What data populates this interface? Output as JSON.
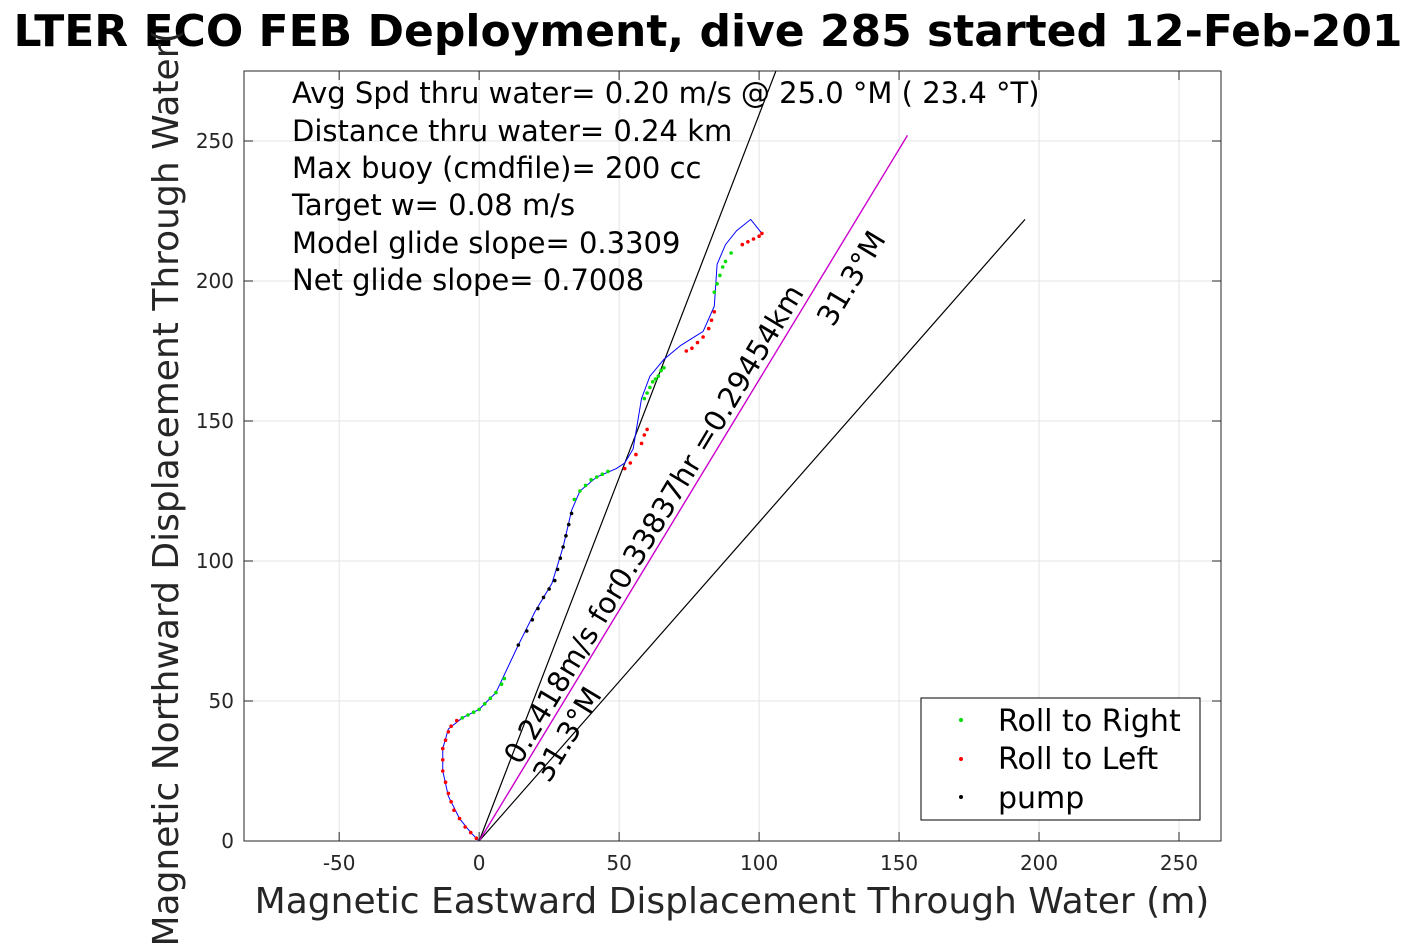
{
  "chart_data": {
    "type": "scatter",
    "title": "LTER ECO FEB Deployment, dive 285 started 12-Feb-201",
    "xlabel": "Magnetic Eastward Displacement Through Water (m)",
    "ylabel": "Magnetic Northward Displacement Through Water(",
    "xlim": [
      -84,
      265
    ],
    "ylim": [
      0,
      275
    ],
    "xticks": [
      -50,
      0,
      50,
      100,
      150,
      200,
      250
    ],
    "xtick_labels": [
      "-50",
      "0",
      "50",
      "100",
      "150",
      "200",
      "250"
    ],
    "yticks": [
      0,
      50,
      100,
      150,
      200,
      250
    ],
    "ytick_labels": [
      "0",
      "50",
      "100",
      "150",
      "200",
      "250"
    ],
    "grid": true,
    "legend_position": "bottom-right",
    "colors": {
      "track": "#0000ff",
      "roll_right": "#00dd00",
      "roll_left": "#ff0000",
      "pump": "#000000",
      "net_line": "#cc00cc",
      "ref_lines": "#000000"
    },
    "annotations": [
      "Avg Spd thru water=  0.20 m/s @  25.0 °M ( 23.4 °T)",
      "Distance thru water=  0.24 km",
      "Max buoy (cmdfile)= 200 cc",
      "Target w= 0.08 m/s",
      "Model glide slope= 0.3309",
      "Net glide slope= 0.7008"
    ],
    "rotated_labels": {
      "net": "0.2418m/s for0.33837hr =0.29454km",
      "net_heading": "31.3°M",
      "lower_heading": "31.3°M"
    },
    "series": [
      {
        "name": "track",
        "x": [
          0,
          -3,
          -7,
          -11,
          -13,
          -13,
          -11,
          -6,
          0,
          6,
          14,
          20,
          26,
          30,
          33,
          36,
          42,
          49,
          52,
          55,
          58,
          61,
          66,
          72,
          80,
          84,
          85,
          88,
          92,
          97,
          101
        ],
        "y": [
          0,
          3,
          8,
          16,
          25,
          33,
          40,
          44,
          47,
          53,
          70,
          82,
          92,
          105,
          118,
          125,
          130,
          133,
          135,
          140,
          158,
          166,
          172,
          177,
          182,
          191,
          206,
          213,
          218,
          222,
          217
        ]
      },
      {
        "name": "Roll to Right",
        "x": [
          -6,
          -4,
          -2,
          0,
          2,
          4,
          6,
          8,
          9,
          34,
          36,
          38,
          40,
          42,
          44,
          46,
          59,
          60,
          61,
          62,
          63,
          64,
          65,
          66,
          84,
          85,
          86,
          87,
          88,
          90
        ],
        "y": [
          44,
          45,
          46,
          47,
          49,
          51,
          53,
          56,
          58,
          122,
          125,
          127,
          129,
          130,
          131,
          132,
          158,
          160,
          162,
          164,
          165,
          166,
          168,
          169,
          196,
          199,
          202,
          205,
          207,
          210
        ]
      },
      {
        "name": "Roll to Left",
        "x": [
          -1,
          -3,
          -5,
          -7,
          -9,
          -10,
          -11,
          -12,
          -13,
          -13,
          -13,
          -12,
          -11,
          -10,
          -8,
          52,
          54,
          56,
          58,
          59,
          60,
          74,
          76,
          78,
          80,
          82,
          83,
          84,
          94,
          96,
          98,
          100,
          101
        ],
        "y": [
          1,
          3,
          5,
          8,
          11,
          14,
          17,
          21,
          25,
          29,
          33,
          36,
          39,
          41,
          43,
          133,
          135,
          138,
          142,
          145,
          147,
          175,
          176,
          178,
          180,
          183,
          186,
          189,
          213,
          214,
          215,
          216,
          217
        ]
      },
      {
        "name": "pump",
        "x": [
          14,
          17,
          19,
          21,
          23,
          25,
          27,
          28,
          29,
          30,
          31,
          32,
          33
        ],
        "y": [
          70,
          75,
          79,
          83,
          87,
          90,
          93,
          97,
          101,
          105,
          109,
          113,
          117
        ]
      },
      {
        "name": "net_track",
        "x": [
          0,
          153
        ],
        "y": [
          0,
          252
        ]
      },
      {
        "name": "ref_line_steep",
        "x": [
          0,
          106
        ],
        "y": [
          0,
          275
        ]
      },
      {
        "name": "ref_line_shallow",
        "x": [
          0,
          195
        ],
        "y": [
          0,
          222
        ]
      }
    ]
  },
  "legend": [
    {
      "label": "Roll to Right",
      "color": "#00dd00"
    },
    {
      "label": "Roll to Left",
      "color": "#ff0000"
    },
    {
      "label": "pump",
      "color": "#000000"
    }
  ]
}
